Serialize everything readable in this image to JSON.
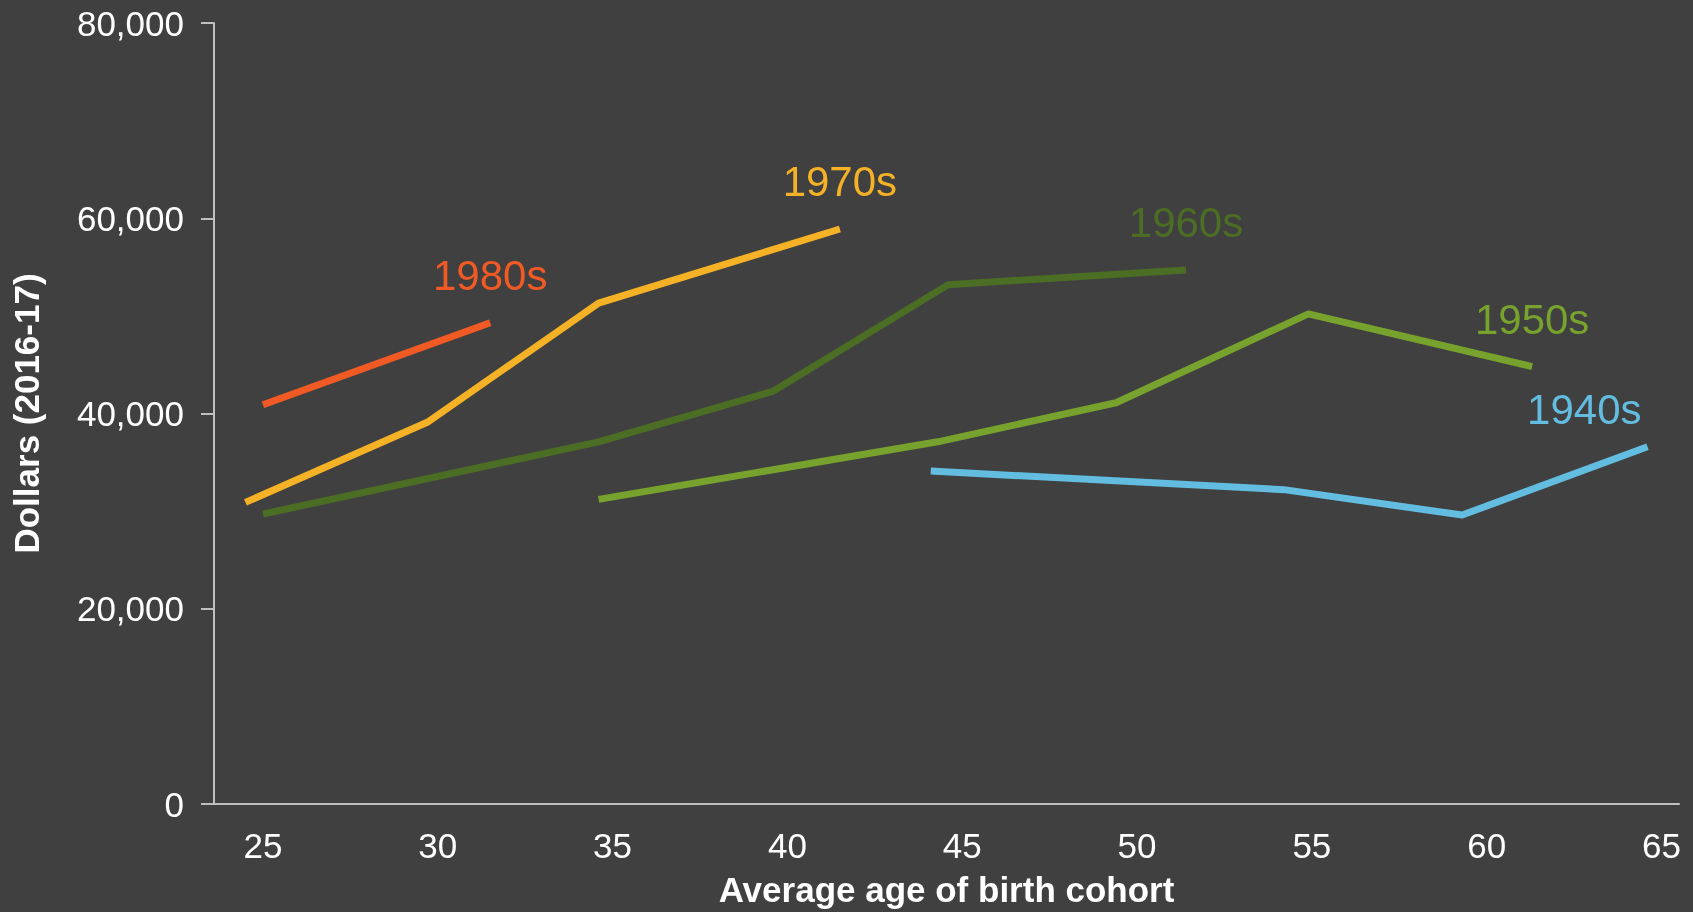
{
  "chart_data": {
    "type": "line",
    "xlabel": "Average age of birth cohort",
    "ylabel": "Dollars (2016-17)",
    "xlim": [
      23.6,
      65.5
    ],
    "xticks": [
      25,
      30,
      35,
      40,
      45,
      50,
      55,
      60,
      65
    ],
    "ylim": [
      0,
      80000
    ],
    "yticks": [
      {
        "value": 0,
        "label": "0"
      },
      {
        "value": 20000,
        "label": "20,000"
      },
      {
        "value": 40000,
        "label": "40,000"
      },
      {
        "value": 60000,
        "label": "60,000"
      },
      {
        "value": 80000,
        "label": "80,000"
      }
    ],
    "marker": "none",
    "series": [
      {
        "name": "1980s",
        "color": "#f15a24",
        "x": [
          25.0,
          31.5
        ],
        "values": [
          40900,
          49300
        ]
      },
      {
        "name": "1970s",
        "color": "#f5b226",
        "x": [
          24.5,
          29.7,
          34.6,
          41.5
        ],
        "values": [
          30900,
          39100,
          51300,
          58900
        ]
      },
      {
        "name": "1960s",
        "color": "#4b6d24",
        "x": [
          25.0,
          34.6,
          39.6,
          44.6,
          51.4
        ],
        "values": [
          29700,
          37100,
          42300,
          53200,
          54700
        ]
      },
      {
        "name": "1950s",
        "color": "#77a22d",
        "x": [
          34.6,
          44.3,
          49.4,
          54.9,
          61.3
        ],
        "values": [
          31200,
          37100,
          41100,
          50200,
          44800
        ]
      },
      {
        "name": "1940s",
        "color": "#62bde0",
        "x": [
          44.1,
          54.2,
          59.3,
          64.6
        ],
        "values": [
          34100,
          32200,
          29600,
          36600
        ]
      }
    ]
  }
}
